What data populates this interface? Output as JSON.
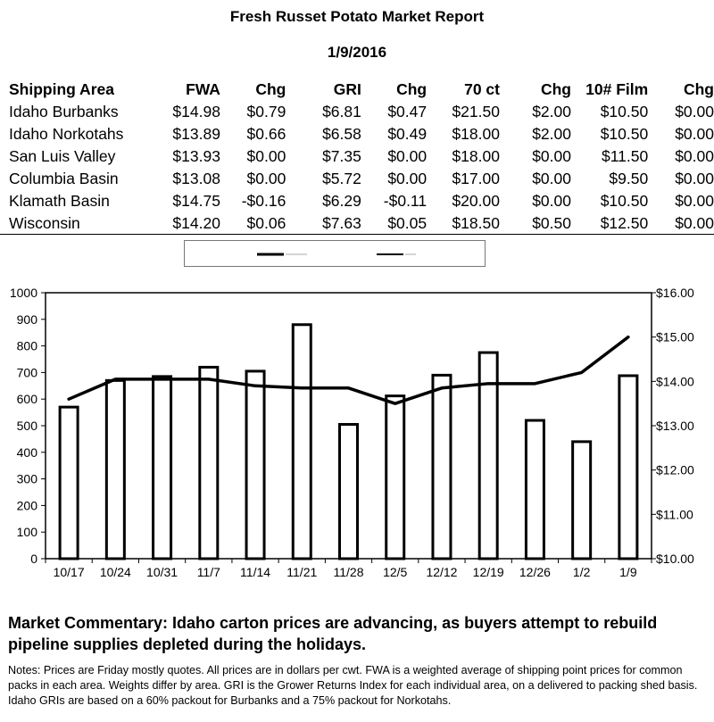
{
  "report": {
    "title": "Fresh Russet Potato Market Report",
    "date": "1/9/2016"
  },
  "table": {
    "headers": [
      "Shipping Area",
      "FWA",
      "Chg",
      "GRI",
      "Chg",
      "70 ct",
      "Chg",
      "10# Film",
      "Chg"
    ],
    "rows": [
      [
        "Idaho Burbanks",
        "$14.98",
        "$0.79",
        "$6.81",
        "$0.47",
        "$21.50",
        "$2.00",
        "$10.50",
        "$0.00"
      ],
      [
        "Idaho Norkotahs",
        "$13.89",
        "$0.66",
        "$6.58",
        "$0.49",
        "$18.00",
        "$2.00",
        "$10.50",
        "$0.00"
      ],
      [
        "San Luis Valley",
        "$13.93",
        "$0.00",
        "$7.35",
        "$0.00",
        "$18.00",
        "$0.00",
        "$11.50",
        "$0.00"
      ],
      [
        "Columbia Basin",
        "$13.08",
        "$0.00",
        "$5.72",
        "$0.00",
        "$17.00",
        "$0.00",
        "$9.50",
        "$0.00"
      ],
      [
        "Klamath Basin",
        "$14.75",
        "-$0.16",
        "$6.29",
        "-$0.11",
        "$20.00",
        "$0.00",
        "$10.50",
        "$0.00"
      ],
      [
        "Wisconsin",
        "$14.20",
        "$0.06",
        "$7.63",
        "$0.05",
        "$18.50",
        "$0.50",
        "$12.50",
        "$0.00"
      ]
    ]
  },
  "chart_data": {
    "type": "bar",
    "categories": [
      "10/17",
      "10/24",
      "10/31",
      "11/7",
      "11/14",
      "11/21",
      "11/28",
      "12/5",
      "12/12",
      "12/19",
      "12/26",
      "1/2",
      "1/9"
    ],
    "series": [
      {
        "kind": "bar",
        "axis": "left",
        "values": [
          570,
          670,
          685,
          720,
          705,
          880,
          505,
          612,
          690,
          775,
          520,
          440,
          688
        ]
      },
      {
        "kind": "line",
        "axis": "right",
        "values": [
          13.6,
          14.05,
          14.05,
          14.05,
          13.9,
          13.85,
          13.85,
          13.5,
          13.85,
          13.95,
          13.95,
          14.2,
          15.0
        ]
      }
    ],
    "y_left": {
      "min": 0,
      "max": 1000,
      "ticks": [
        "0",
        "100",
        "200",
        "300",
        "400",
        "500",
        "600",
        "700",
        "800",
        "900",
        "1000"
      ]
    },
    "y_right": {
      "min": 10,
      "max": 16,
      "ticks": [
        "$10.00",
        "$11.00",
        "$12.00",
        "$13.00",
        "$14.00",
        "$15.00",
        "$16.00"
      ]
    },
    "grid": false,
    "legend": {
      "position": "top"
    },
    "colors": {
      "bar_fill": "#ffffff",
      "bar_stroke": "#000000",
      "line": "#000000"
    }
  },
  "commentary": "Market Commentary: Idaho carton prices are advancing, as buyers attempt to rebuild pipeline supplies depleted during the holidays.",
  "notes": "Notes: Prices are Friday mostly quotes. All prices are in dollars per cwt. FWA is a weighted average of shipping point prices for  common packs in each area. Weights differ by area. GRI is the Grower Returns Index for each individual area, on a delivered to packing shed basis. Idaho GRIs are based on a 60% packout for Burbanks and a 75% packout for Norkotahs."
}
